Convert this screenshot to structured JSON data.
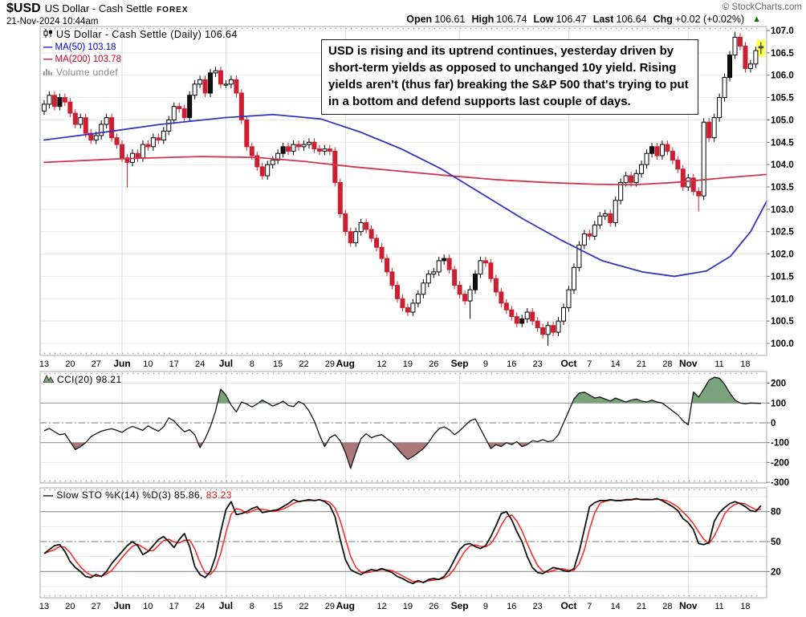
{
  "header": {
    "symbol": "$USD",
    "name": "US Dollar - Cash Settle",
    "exchange": "FOREX",
    "datetime": "21-Nov-2024 10:44am",
    "copyright": "© StockCharts.com",
    "quote": {
      "open_label": "Open",
      "open": "106.61",
      "high_label": "High",
      "high": "106.74",
      "low_label": "Low",
      "low": "106.47",
      "last_label": "Last",
      "last": "106.64",
      "chg_label": "Chg",
      "chg": "+0.02 (+0.02%)",
      "direction": "up"
    }
  },
  "legend": {
    "main": "US Dollar - Cash Settle (Daily) 106.64",
    "ma50": "MA(50) 103.18",
    "ma200": "MA(200) 103.78",
    "volume": "Volume undef"
  },
  "annotation": {
    "text": "USD is rising and its uptrend continues, yesterday driven by short-term yields as opposed to unchanged 10y yield. Rising yields aren't (thus far) breaking the S&P 500 that's trying to put in a bottom and defend supports last couple of days."
  },
  "cci_label": "CCI(20) 98.21",
  "sto_label_k": "Slow STO %K(14) %D(3) 85.86,",
  "sto_label_d": "83.23",
  "colors": {
    "down_candle": "#cc1f31",
    "up_candle_border": "#000000",
    "black_candle": "#111111",
    "ma50": "#3333bb",
    "ma200": "#d23350",
    "cci_line": "#111111",
    "cci_fill_pos": "#7ba37b",
    "cci_fill_neg": "#aa7878",
    "sto_k": "#111111",
    "sto_d": "#ff2222",
    "highlight": "#ffff55",
    "grid_light": "#e7e7e7",
    "grid_month": "#dcdcdc",
    "level_solid": "#999999",
    "level_dash": "#777777",
    "border": "#aaaaaa",
    "up_triangle": "#007700"
  },
  "chart_data": [
    {
      "type": "candlestick",
      "title": "US Dollar - Cash Settle (Daily)",
      "symbol": "$USD",
      "last_close": 106.64,
      "ylim": [
        99.7,
        107.1
      ],
      "y_tick_min": 100.0,
      "y_tick_max": 107.0,
      "y_tick_step": 0.5,
      "x_tick_labels": [
        "13",
        "20",
        "27",
        "Jun",
        "10",
        "17",
        "24",
        "Jul",
        "8",
        "15",
        "22",
        "29",
        "Aug",
        "12",
        "19",
        "26",
        "Sep",
        "9",
        "16",
        "23",
        "Oct",
        "7",
        "14",
        "21",
        "28",
        "Nov",
        "11",
        "18"
      ],
      "x_tick_days": [
        0,
        5,
        10,
        15,
        20,
        25,
        30,
        35,
        40,
        45,
        50,
        55,
        58,
        65,
        70,
        75,
        80,
        85,
        90,
        95,
        101,
        105,
        110,
        115,
        120,
        124,
        130,
        135
      ],
      "first_open": 105.2,
      "wick": 0.09,
      "closes": [
        105.35,
        105.55,
        105.3,
        105.5,
        105.4,
        105.15,
        104.9,
        105.05,
        104.7,
        104.55,
        104.65,
        104.9,
        105.05,
        104.6,
        104.45,
        104.15,
        104.05,
        104.25,
        104.15,
        104.45,
        104.4,
        104.6,
        104.55,
        104.75,
        105.0,
        105.3,
        105.25,
        105.05,
        105.55,
        105.8,
        105.9,
        105.6,
        106.05,
        106.1,
        105.8,
        105.8,
        105.9,
        105.6,
        105.0,
        104.4,
        104.2,
        103.95,
        103.75,
        104.0,
        104.1,
        104.25,
        104.4,
        104.3,
        104.45,
        104.4,
        104.45,
        104.5,
        104.35,
        104.3,
        104.35,
        104.3,
        103.6,
        102.9,
        102.5,
        102.25,
        102.5,
        102.7,
        102.55,
        102.35,
        102.15,
        101.9,
        101.6,
        101.3,
        101.0,
        100.8,
        100.7,
        100.9,
        101.1,
        101.35,
        101.55,
        101.6,
        101.85,
        101.9,
        101.65,
        101.3,
        101.1,
        100.95,
        101.2,
        101.55,
        101.85,
        101.8,
        101.45,
        101.15,
        100.9,
        100.75,
        100.6,
        100.45,
        100.55,
        100.7,
        100.5,
        100.35,
        100.2,
        100.4,
        100.25,
        100.5,
        100.8,
        101.2,
        101.7,
        102.2,
        102.45,
        102.4,
        102.65,
        102.85,
        102.9,
        102.7,
        103.2,
        103.6,
        103.75,
        103.6,
        103.8,
        104.0,
        104.25,
        104.4,
        104.2,
        104.45,
        104.3,
        104.1,
        103.9,
        103.5,
        103.7,
        103.4,
        103.3,
        104.95,
        104.6,
        105.05,
        105.5,
        105.95,
        106.45,
        106.85,
        106.65,
        106.15,
        106.25,
        106.55,
        106.64
      ],
      "overrides": {
        "16": {
          "l": 103.5
        },
        "82": {
          "l": 100.55
        },
        "97": {
          "l": 99.95
        },
        "126": {
          "l": 102.95
        },
        "133": {
          "h": 106.97
        },
        "138": {
          "o": 106.61,
          "h": 106.74,
          "l": 106.47
        }
      },
      "black_candles": [
        3,
        28,
        32,
        46,
        77,
        83,
        92,
        117,
        132
      ],
      "ma50": {
        "label": "MA(50)",
        "value": 103.18,
        "points": [
          [
            55,
            104.55
          ],
          [
            120,
            104.7
          ],
          [
            200,
            104.9
          ],
          [
            280,
            105.05
          ],
          [
            340,
            105.12
          ],
          [
            400,
            105.02
          ],
          [
            450,
            104.72
          ],
          [
            500,
            104.35
          ],
          [
            550,
            103.9
          ],
          [
            600,
            103.35
          ],
          [
            650,
            102.8
          ],
          [
            700,
            102.3
          ],
          [
            750,
            101.85
          ],
          [
            800,
            101.6
          ],
          [
            840,
            101.5
          ],
          [
            880,
            101.62
          ],
          [
            910,
            101.95
          ],
          [
            935,
            102.5
          ],
          [
            955,
            103.18
          ]
        ]
      },
      "ma200": {
        "label": "MA(200)",
        "value": 103.78,
        "points": [
          [
            55,
            104.05
          ],
          [
            150,
            104.13
          ],
          [
            250,
            104.18
          ],
          [
            320,
            104.16
          ],
          [
            380,
            104.07
          ],
          [
            440,
            103.95
          ],
          [
            500,
            103.85
          ],
          [
            560,
            103.75
          ],
          [
            620,
            103.66
          ],
          [
            680,
            103.6
          ],
          [
            740,
            103.56
          ],
          [
            790,
            103.55
          ],
          [
            840,
            103.6
          ],
          [
            900,
            103.7
          ],
          [
            955,
            103.78
          ]
        ]
      }
    },
    {
      "type": "area-line",
      "name": "CCI(20)",
      "last": 98.21,
      "ylim": [
        -320,
        260
      ],
      "y_ticks": [
        200,
        100,
        0,
        -100,
        -200,
        -300
      ],
      "bands": {
        "upper": 100,
        "lower": -100
      },
      "values": [
        -40,
        -28,
        -45,
        -60,
        -55,
        -95,
        -135,
        -120,
        -100,
        -70,
        -55,
        -42,
        -35,
        -30,
        -38,
        -48,
        -30,
        -18,
        -28,
        -38,
        -15,
        -30,
        -42,
        -20,
        25,
        10,
        -20,
        -45,
        -35,
        -60,
        -125,
        -80,
        -20,
        60,
        170,
        140,
        90,
        55,
        105,
        95,
        80,
        95,
        115,
        100,
        85,
        95,
        110,
        88,
        82,
        108,
        95,
        60,
        10,
        -60,
        -120,
        -75,
        -60,
        -90,
        -150,
        -230,
        -150,
        -80,
        -55,
        -75,
        -65,
        -60,
        -80,
        -100,
        -130,
        -160,
        -185,
        -170,
        -150,
        -130,
        -100,
        -60,
        -30,
        -20,
        -35,
        -60,
        -40,
        -15,
        10,
        20,
        -30,
        -80,
        -130,
        -110,
        -120,
        -100,
        -110,
        -95,
        -120,
        -110,
        -90,
        -95,
        -85,
        -95,
        -90,
        -60,
        0,
        60,
        120,
        150,
        155,
        140,
        125,
        130,
        120,
        110,
        125,
        115,
        105,
        115,
        120,
        110,
        105,
        115,
        105,
        100,
        80,
        60,
        40,
        10,
        -10,
        155,
        130,
        170,
        215,
        230,
        225,
        195,
        150,
        115,
        100,
        96,
        100,
        99,
        98
      ]
    },
    {
      "type": "line",
      "name": "Slow STO %K(14) %D(3)",
      "k_last": 85.86,
      "d_last": 83.23,
      "ylim": [
        0,
        104
      ],
      "y_ticks": [
        80,
        50,
        20
      ],
      "minor_levels": [
        95,
        65,
        35,
        5
      ],
      "d_method": "sma3",
      "k_values": [
        38,
        42,
        46,
        47,
        40,
        30,
        24,
        20,
        15,
        14,
        17,
        15,
        20,
        28,
        34,
        40,
        46,
        50,
        46,
        37,
        40,
        46,
        52,
        55,
        50,
        44,
        52,
        58,
        45,
        25,
        17,
        14,
        20,
        35,
        60,
        82,
        90,
        77,
        78,
        80,
        83,
        85,
        79,
        80,
        81,
        82,
        85,
        88,
        92,
        90,
        91,
        92,
        91,
        92,
        90,
        86,
        75,
        52,
        32,
        22,
        19,
        17,
        20,
        22,
        21,
        23,
        21,
        19,
        15,
        13,
        10,
        8,
        11,
        9,
        12,
        13,
        12,
        15,
        22,
        32,
        42,
        47,
        48,
        45,
        43,
        46,
        55,
        66,
        78,
        80,
        72,
        60,
        50,
        35,
        24,
        19,
        18,
        21,
        24,
        23,
        21,
        20,
        23,
        40,
        62,
        85,
        89,
        91,
        91,
        92,
        91,
        91,
        92,
        92,
        93,
        92,
        92,
        92,
        93,
        91,
        88,
        85,
        81,
        73,
        69,
        62,
        48,
        47,
        49,
        70,
        79,
        84,
        88,
        90,
        88,
        85,
        81,
        80,
        86
      ]
    }
  ]
}
